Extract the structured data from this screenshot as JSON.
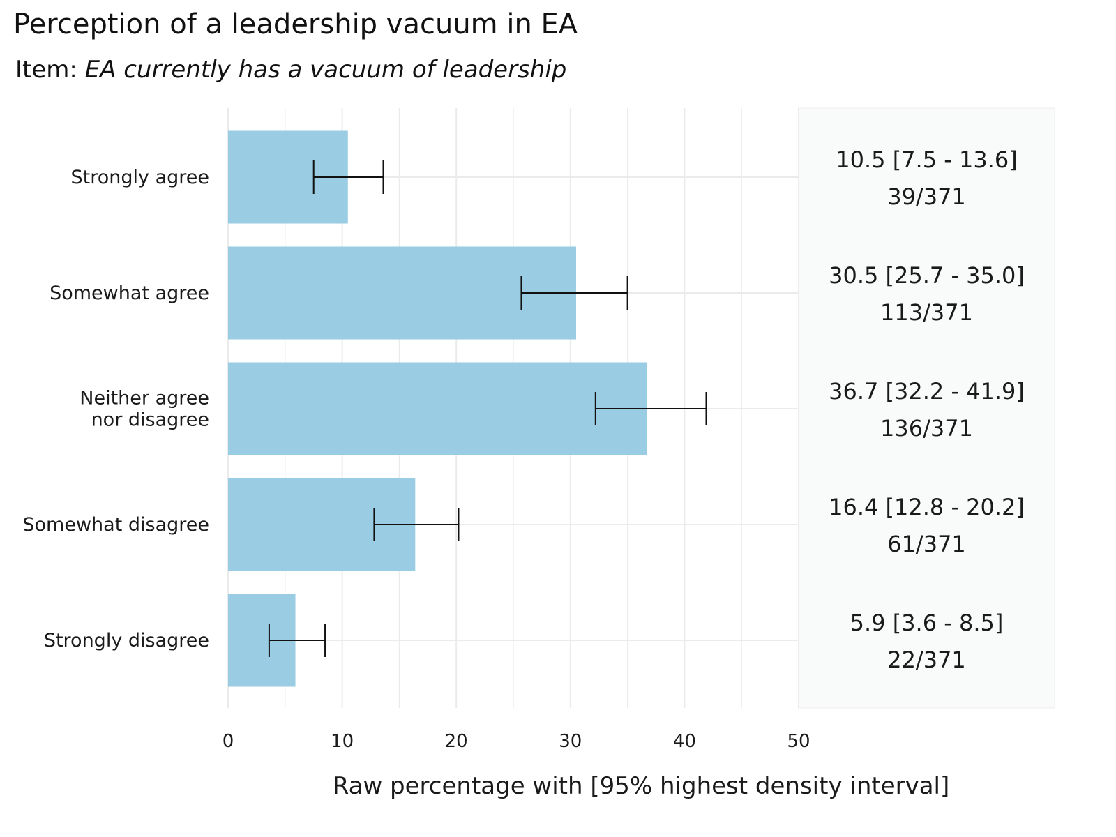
{
  "title": "Perception of a leadership vacuum in EA",
  "subtitle_prefix": "Item: ",
  "subtitle_item": "EA currently has a vacuum of leadership",
  "chart_data": {
    "type": "bar",
    "orientation": "horizontal",
    "categories": [
      "Strongly agree",
      "Somewhat agree",
      "Neither agree nor disagree",
      "Somewhat disagree",
      "Strongly disagree"
    ],
    "category_lines": [
      [
        "Strongly agree"
      ],
      [
        "Somewhat agree"
      ],
      [
        "Neither agree",
        "nor disagree"
      ],
      [
        "Somewhat disagree"
      ],
      [
        "Strongly disagree"
      ]
    ],
    "values": [
      10.5,
      30.5,
      36.7,
      16.4,
      5.9
    ],
    "ci_low": [
      7.5,
      25.7,
      32.2,
      12.8,
      3.6
    ],
    "ci_high": [
      13.6,
      35.0,
      41.9,
      20.2,
      8.5
    ],
    "summary_labels": [
      "10.5 [7.5 - 13.6]",
      "30.5 [25.7 - 35.0]",
      "36.7 [32.2 - 41.9]",
      "16.4 [12.8 - 20.2]",
      "5.9 [3.6 - 8.5]"
    ],
    "count_labels": [
      "39/371",
      "113/371",
      "136/371",
      "61/371",
      "22/371"
    ],
    "xlabel": "Raw percentage with [95% highest density interval]",
    "ylabel": "",
    "xlim": [
      0,
      50
    ],
    "xticks": [
      0,
      10,
      20,
      30,
      40,
      50
    ],
    "grid": true,
    "colors": {
      "bar": "#9ACCE3",
      "error_bar": "#111111",
      "grid": "#ebebeb",
      "panel": "#f9fafa"
    }
  }
}
